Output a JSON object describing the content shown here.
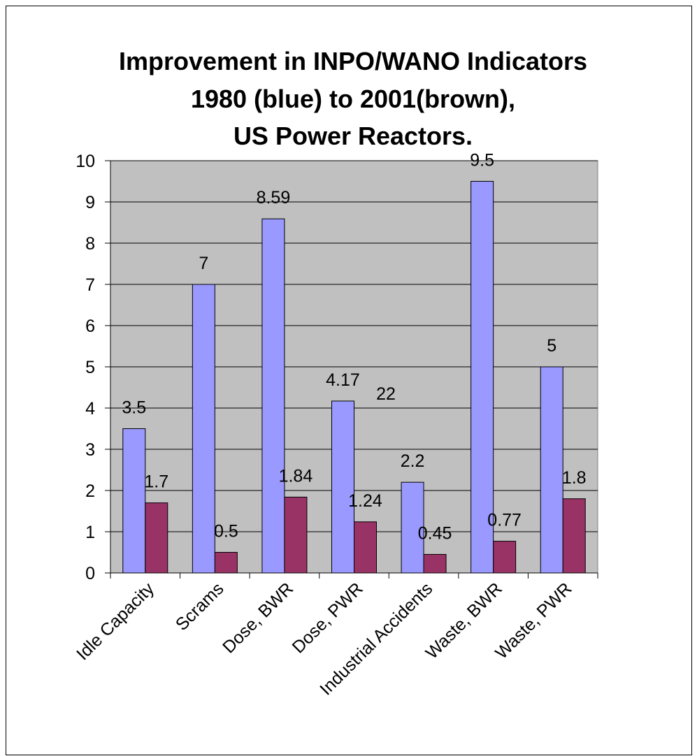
{
  "chart_data": {
    "type": "bar",
    "title": [
      "Improvement in INPO/WANO Indicators",
      "1980 (blue) to 2001(brown),",
      "US Power Reactors."
    ],
    "categories": [
      "Idle  Capacity",
      "Scrams",
      "Dose, BWR",
      "Dose, PWR",
      "Industrial  Accidents",
      "Waste, BWR",
      "Waste, PWR"
    ],
    "series": [
      {
        "color": "#9999ff",
        "values": [
          3.5,
          7,
          8.59,
          4.17,
          2.2,
          9.5,
          5
        ]
      },
      {
        "color": "#993366",
        "values": [
          1.7,
          0.5,
          1.84,
          1.24,
          0.45,
          0.77,
          1.8
        ]
      }
    ],
    "annotations": [
      "22"
    ],
    "ylim": [
      0,
      10
    ],
    "yticks": [
      0,
      1,
      2,
      3,
      4,
      5,
      6,
      7,
      8,
      9,
      10
    ],
    "grid": true,
    "plot_background": "#c0c0c0"
  }
}
